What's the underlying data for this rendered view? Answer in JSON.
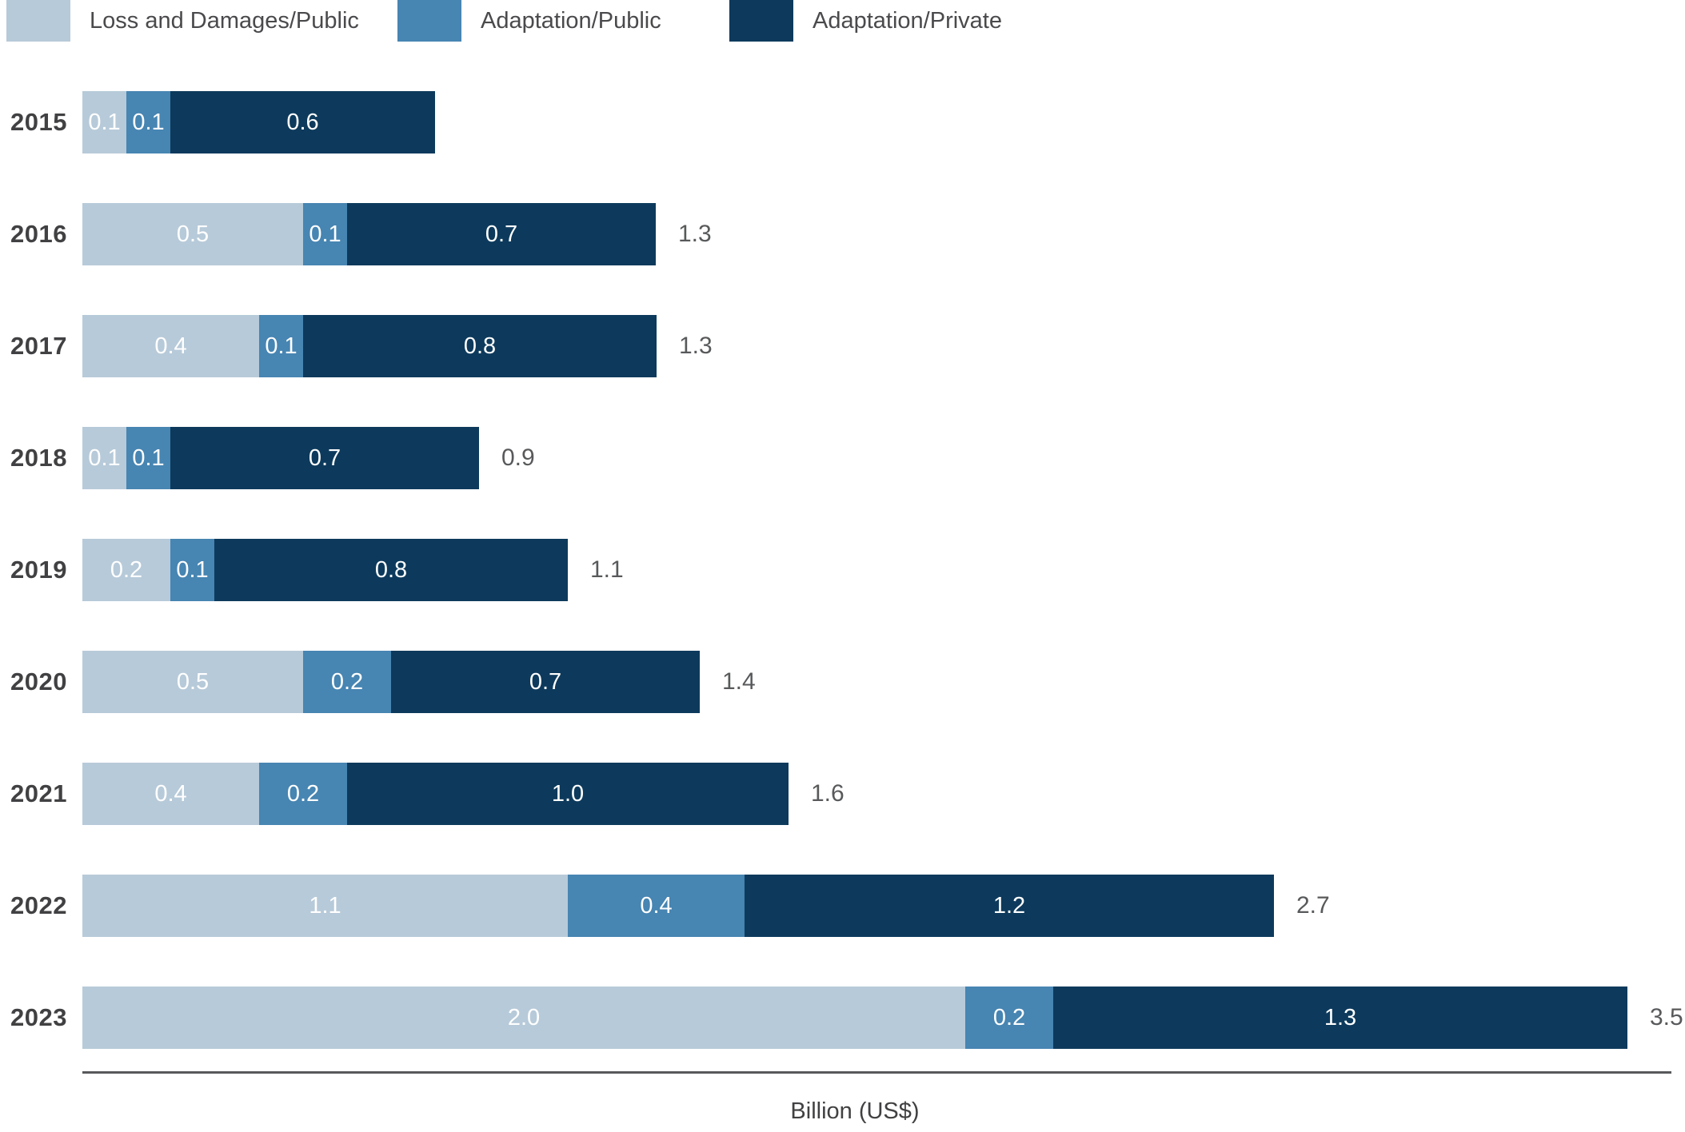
{
  "chart_data": {
    "type": "bar",
    "orientation": "horizontal",
    "stacked": true,
    "title": "",
    "xlabel": "Billion (US$)",
    "categories": [
      "2015",
      "2016",
      "2017",
      "2018",
      "2019",
      "2020",
      "2021",
      "2022",
      "2023"
    ],
    "series": [
      {
        "name": "Loss and Damages/Public",
        "color": "#b7cad9",
        "values": [
          0.1,
          0.5,
          0.4,
          0.1,
          0.2,
          0.5,
          0.4,
          1.1,
          2.0
        ]
      },
      {
        "name": "Adaptation/Public",
        "color": "#4785b2",
        "values": [
          0.1,
          0.1,
          0.1,
          0.1,
          0.1,
          0.2,
          0.2,
          0.4,
          0.2
        ]
      },
      {
        "name": "Adaptation/Private",
        "color": "#0d3a5c",
        "values": [
          0.6,
          0.7,
          0.8,
          0.7,
          0.8,
          0.7,
          1.0,
          1.2,
          1.3
        ]
      }
    ],
    "totals": [
      null,
      1.3,
      1.3,
      0.9,
      1.1,
      1.4,
      1.6,
      2.7,
      3.5
    ],
    "xmax": 3.5,
    "legend_position": "top",
    "grid": false,
    "value_labels": "inside segments, white, one decimal place",
    "total_labels": "right of bar, gray, one decimal place"
  },
  "colors": {
    "year_label": "#414042",
    "total_label": "#58595b",
    "axis_line": "#58595b",
    "legend_text": "#4a4a4d",
    "background": "#ffffff"
  }
}
